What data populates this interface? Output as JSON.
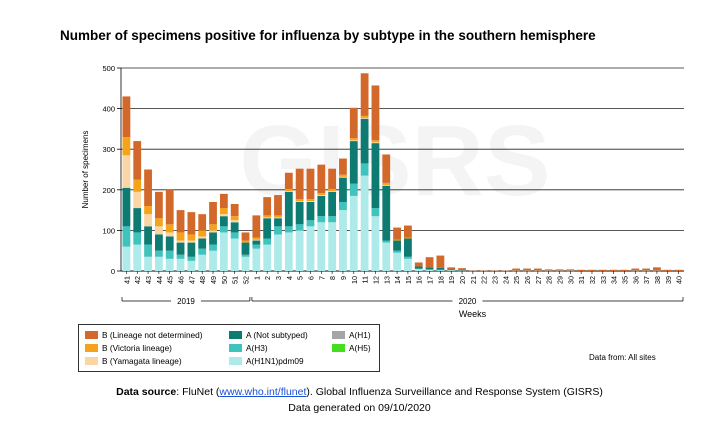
{
  "title": "Number of specimens positive for influenza by subtype in the southern hemisphere",
  "watermark": "GISRS",
  "chart_data": {
    "type": "bar",
    "stacked": true,
    "ylabel": "Number of specimens",
    "xlabel": "Weeks",
    "ylim": [
      0,
      500
    ],
    "yticks": [
      0,
      100,
      200,
      300,
      400,
      500
    ],
    "grid": true,
    "categories": [
      "41",
      "42",
      "43",
      "44",
      "45",
      "46",
      "47",
      "48",
      "49",
      "50",
      "51",
      "52",
      "1",
      "2",
      "3",
      "4",
      "5",
      "6",
      "7",
      "8",
      "9",
      "10",
      "11",
      "12",
      "13",
      "14",
      "15",
      "16",
      "17",
      "18",
      "19",
      "20",
      "21",
      "22",
      "23",
      "24",
      "25",
      "26",
      "27",
      "28",
      "29",
      "30",
      "31",
      "32",
      "33",
      "34",
      "35",
      "36",
      "37",
      "38",
      "39",
      "40"
    ],
    "year_groups": [
      {
        "label": "2019",
        "start": 0,
        "end": 11
      },
      {
        "label": "2020",
        "start": 12,
        "end": 51
      }
    ],
    "series": [
      {
        "name": "A(H1N1)pdm09",
        "color": "#aeeaea",
        "values": [
          60,
          65,
          35,
          35,
          30,
          30,
          25,
          40,
          50,
          95,
          80,
          35,
          55,
          65,
          90,
          95,
          100,
          110,
          120,
          120,
          150,
          185,
          235,
          135,
          70,
          45,
          30,
          5,
          3,
          2,
          2,
          1,
          0,
          0,
          0,
          0,
          1,
          1,
          1,
          1,
          1,
          1,
          0,
          0,
          0,
          0,
          0,
          1,
          1,
          1,
          0,
          0
        ]
      },
      {
        "name": "A(H3)",
        "color": "#3ec3bd",
        "values": [
          50,
          30,
          30,
          15,
          20,
          10,
          10,
          15,
          15,
          15,
          15,
          5,
          10,
          15,
          20,
          15,
          15,
          15,
          15,
          15,
          20,
          30,
          30,
          20,
          5,
          5,
          5,
          1,
          1,
          1,
          0,
          0,
          0,
          0,
          0,
          0,
          0,
          0,
          0,
          0,
          0,
          0,
          0,
          0,
          0,
          0,
          0,
          0,
          0,
          0,
          0,
          0
        ]
      },
      {
        "name": "A (Not subtyped)",
        "color": "#0e7b73",
        "values": [
          95,
          60,
          45,
          40,
          35,
          30,
          35,
          25,
          30,
          25,
          25,
          30,
          10,
          50,
          20,
          85,
          55,
          45,
          50,
          60,
          60,
          105,
          110,
          160,
          135,
          25,
          45,
          5,
          5,
          5,
          2,
          1,
          0,
          0,
          0,
          0,
          0,
          0,
          0,
          0,
          0,
          0,
          0,
          0,
          0,
          0,
          0,
          0,
          0,
          0,
          0,
          0
        ]
      },
      {
        "name": "B (Yamagata lineage)",
        "color": "#fbd6a4",
        "values": [
          80,
          40,
          30,
          20,
          10,
          5,
          5,
          5,
          5,
          5,
          5,
          0,
          2,
          2,
          2,
          2,
          2,
          2,
          2,
          2,
          2,
          2,
          2,
          2,
          2,
          0,
          0,
          0,
          0,
          0,
          0,
          0,
          0,
          0,
          0,
          0,
          0,
          0,
          0,
          0,
          0,
          0,
          0,
          0,
          0,
          0,
          0,
          0,
          0,
          0,
          0,
          0
        ]
      },
      {
        "name": "B (Victoria lineage)",
        "color": "#f5a31a",
        "values": [
          45,
          30,
          20,
          20,
          20,
          20,
          15,
          15,
          15,
          15,
          10,
          5,
          5,
          5,
          5,
          5,
          5,
          5,
          5,
          5,
          5,
          5,
          5,
          5,
          5,
          2,
          2,
          0,
          0,
          0,
          0,
          0,
          0,
          0,
          0,
          0,
          0,
          0,
          0,
          0,
          0,
          0,
          0,
          0,
          0,
          0,
          0,
          0,
          0,
          0,
          0,
          0
        ]
      },
      {
        "name": "B (Lineage not determined)",
        "color": "#d2692a",
        "values": [
          100,
          95,
          90,
          65,
          85,
          55,
          55,
          40,
          55,
          35,
          30,
          20,
          55,
          45,
          50,
          40,
          75,
          75,
          70,
          50,
          40,
          75,
          105,
          135,
          70,
          30,
          30,
          10,
          25,
          30,
          5,
          5,
          1,
          1,
          1,
          1,
          5,
          5,
          5,
          3,
          3,
          3,
          3,
          3,
          3,
          3,
          3,
          5,
          5,
          8,
          3,
          3
        ]
      },
      {
        "name": "A(H1)",
        "color": "#a5a5a5",
        "values": [
          0,
          0,
          0,
          0,
          0,
          0,
          0,
          0,
          0,
          0,
          0,
          0,
          0,
          0,
          0,
          0,
          0,
          0,
          0,
          0,
          0,
          0,
          0,
          0,
          0,
          0,
          0,
          0,
          0,
          0,
          0,
          0,
          0,
          0,
          0,
          0,
          0,
          0,
          0,
          0,
          0,
          0,
          0,
          0,
          0,
          0,
          0,
          0,
          0,
          0,
          0,
          0
        ]
      },
      {
        "name": "A(H5)",
        "color": "#44dd1f",
        "values": [
          0,
          0,
          0,
          0,
          0,
          0,
          0,
          0,
          0,
          0,
          0,
          0,
          0,
          0,
          0,
          0,
          0,
          0,
          0,
          0,
          0,
          0,
          0,
          0,
          0,
          0,
          0,
          0,
          0,
          0,
          0,
          0,
          0,
          0,
          0,
          0,
          0,
          0,
          0,
          0,
          0,
          0,
          0,
          0,
          0,
          0,
          0,
          0,
          0,
          0,
          0,
          0
        ]
      }
    ],
    "legend": {
      "placement": "bottom-left",
      "entries": [
        {
          "label": "B (Lineage not determined)",
          "color": "#d2692a"
        },
        {
          "label": "A (Not subtyped)",
          "color": "#0e7b73"
        },
        {
          "label": "A(H1)",
          "color": "#a5a5a5"
        },
        {
          "label": "B (Victoria lineage)",
          "color": "#f5a31a"
        },
        {
          "label": "A(H3)",
          "color": "#3ec3bd"
        },
        {
          "label": "A(H5)",
          "color": "#44dd1f"
        },
        {
          "label": "B (Yamagata lineage)",
          "color": "#fbd6a4"
        },
        {
          "label": "A(H1N1)pdm09",
          "color": "#aeeaea"
        }
      ]
    }
  },
  "data_from": "Data from: All sites",
  "footer": {
    "source_label": "Data source",
    "source_prefix": ": FluNet (",
    "source_link": "www.who.int/flunet",
    "source_suffix": "). Global Influenza Surveillance and Response System (GISRS)",
    "generated": "Data generated on 09/10/2020"
  }
}
